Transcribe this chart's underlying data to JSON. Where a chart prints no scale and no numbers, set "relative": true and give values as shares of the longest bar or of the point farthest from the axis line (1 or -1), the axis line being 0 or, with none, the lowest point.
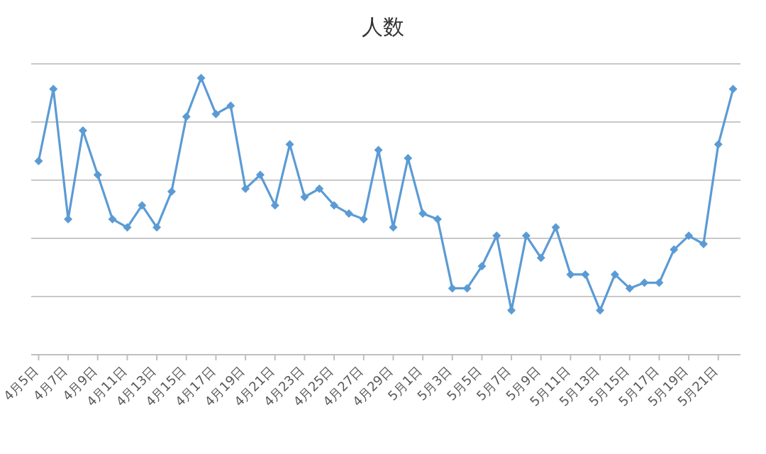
{
  "chart_data": {
    "type": "line",
    "title": "人数",
    "relative": true,
    "grid": true,
    "marker": "diamond",
    "color": "#5b9bd5",
    "categories": [
      "4月5日",
      null,
      "4月7日",
      null,
      "4月9日",
      null,
      "4月11日",
      null,
      "4月13日",
      null,
      "4月15日",
      null,
      "4月17日",
      null,
      "4月19日",
      null,
      "4月21日",
      null,
      "4月23日",
      null,
      "4月25日",
      null,
      "4月27日",
      null,
      "4月29日",
      null,
      "5月1日",
      null,
      "5月3日",
      null,
      "5月5日",
      null,
      "5月7日",
      null,
      "5月9日",
      null,
      "5月11日",
      null,
      "5月13日",
      null,
      "5月15日",
      null,
      "5月17日",
      null,
      "5月19日",
      null,
      "5月21日",
      null
    ],
    "values": [
      0.7,
      0.96,
      0.49,
      0.81,
      0.65,
      0.49,
      0.46,
      0.54,
      0.46,
      0.59,
      0.86,
      1,
      0.87,
      0.9,
      0.6,
      0.65,
      0.54,
      0.76,
      0.57,
      0.6,
      0.54,
      0.51,
      0.49,
      0.74,
      0.46,
      0.71,
      0.51,
      0.49,
      0.24,
      0.24,
      0.32,
      0.43,
      0.16,
      0.43,
      0.35,
      0.46,
      0.29,
      0.29,
      0.16,
      0.29,
      0.24,
      0.26,
      0.26,
      0.38,
      0.43,
      0.4,
      0.76,
      0.96
    ]
  }
}
